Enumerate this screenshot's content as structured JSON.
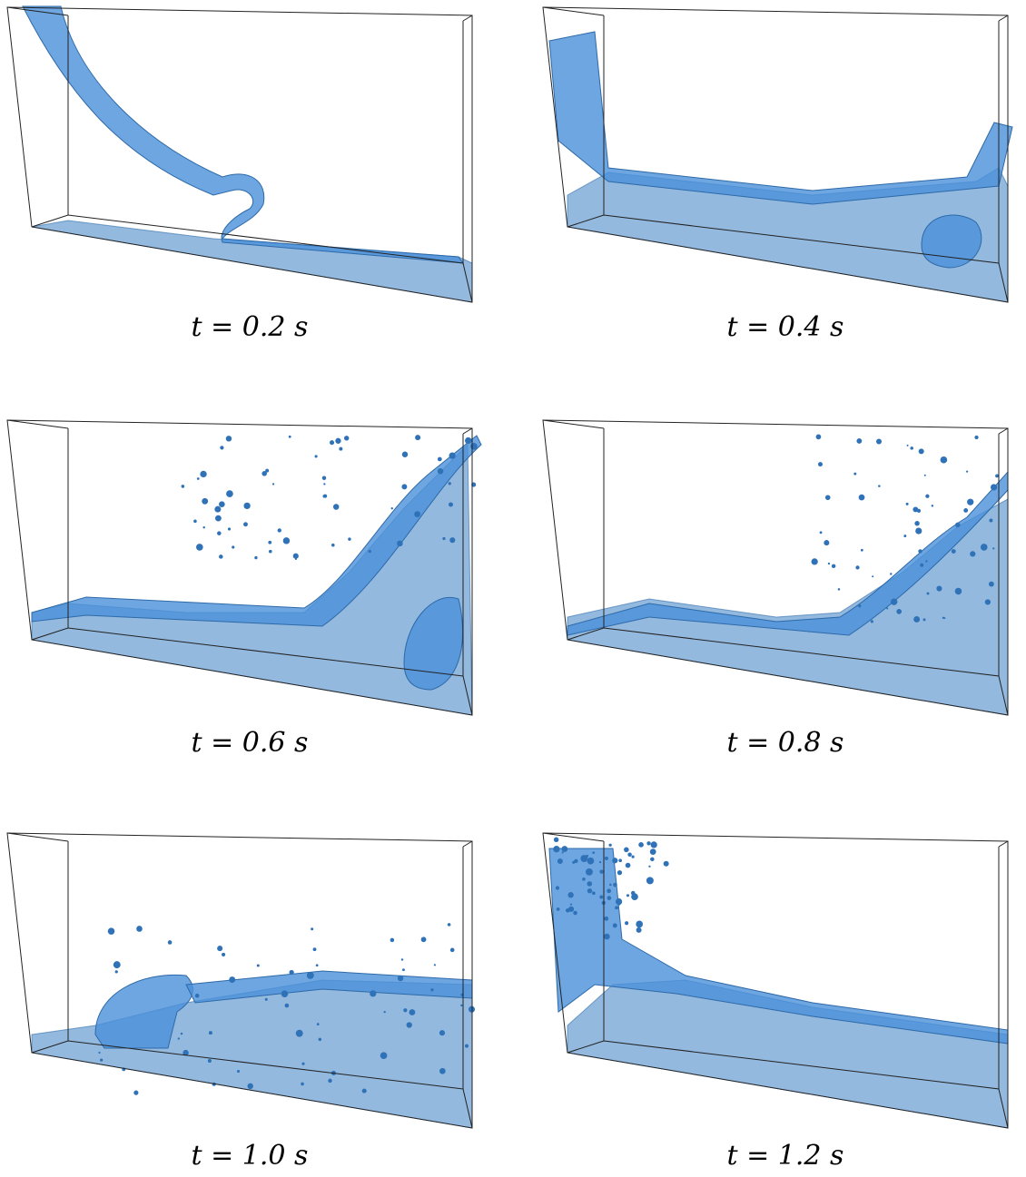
{
  "panels": [
    {
      "caption": "t = 0.2 s"
    },
    {
      "caption": "t = 0.4 s"
    },
    {
      "caption": "t = 0.6 s"
    },
    {
      "caption": "t = 0.8 s"
    },
    {
      "caption": "t = 1.0 s"
    },
    {
      "caption": "t = 1.2 s"
    }
  ]
}
